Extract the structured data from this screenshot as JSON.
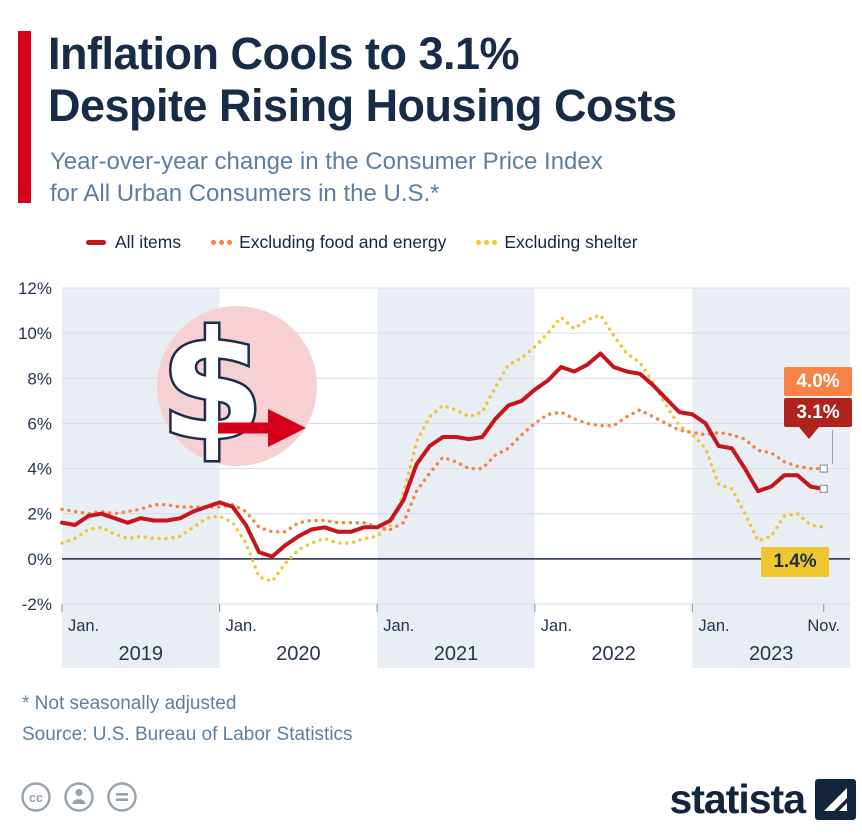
{
  "header": {
    "title_line1": "Inflation Cools to 3.1%",
    "title_line2": "Despite Rising Housing Costs",
    "subtitle_line1": "Year-over-year change in the Consumer Price Index",
    "subtitle_line2": "for All Urban Consumers in the U.S.*"
  },
  "legend": [
    {
      "label": "All items",
      "color": "#c4161c",
      "style": "solid"
    },
    {
      "label": "Excluding food and energy",
      "color": "#f58345",
      "style": "dotted"
    },
    {
      "label": "Excluding shelter",
      "color": "#eec734",
      "style": "dotted"
    }
  ],
  "theme": {
    "accent_red": "#d6001c",
    "title_navy": "#182c47",
    "subtitle_blue": "#5e7e9f",
    "band": "#e9edf4",
    "grid": "#d7dce3",
    "zero_line": "#39485e",
    "dollar_circle_pink": "#f6d0d3",
    "marker_border": "#8e99a8"
  },
  "chart_data": {
    "type": "line",
    "title": "Inflation Cools to 3.1% Despite Rising Housing Costs",
    "subtitle": "Year-over-year change in the Consumer Price Index for All Urban Consumers in the U.S. (not seasonally adjusted)",
    "x_unit": "month",
    "x_range": [
      "Jan. 2019",
      "Nov. 2023"
    ],
    "ylim": [
      -2,
      12
    ],
    "grid": true,
    "legend_position": "top",
    "dollar_symbol": "$",
    "y_ticks": [
      {
        "label": "12%",
        "value": 12
      },
      {
        "label": "10%",
        "value": 10
      },
      {
        "label": "8%",
        "value": 8
      },
      {
        "label": "6%",
        "value": 6
      },
      {
        "label": "4%",
        "value": 4
      },
      {
        "label": "2%",
        "value": 2
      },
      {
        "label": "0%",
        "value": 0,
        "emphasis": true
      },
      {
        "label": "-2%",
        "value": -2
      }
    ],
    "x_ticks": [
      {
        "label": "Jan.",
        "month": 0,
        "align": "start"
      },
      {
        "label": "Jan.",
        "month": 12,
        "align": "start"
      },
      {
        "label": "Jan.",
        "month": 24,
        "align": "start"
      },
      {
        "label": "Jan.",
        "month": 36,
        "align": "start"
      },
      {
        "label": "Jan.",
        "month": 48,
        "align": "start"
      },
      {
        "label": "Nov.",
        "month": 58,
        "align": "middle"
      }
    ],
    "x_bands": [
      {
        "label": "2019",
        "start": 0,
        "months": 12,
        "shaded": true
      },
      {
        "label": "2020",
        "start": 12,
        "months": 12,
        "shaded": false
      },
      {
        "label": "2021",
        "start": 24,
        "months": 12,
        "shaded": true
      },
      {
        "label": "2022",
        "start": 36,
        "months": 12,
        "shaded": false
      },
      {
        "label": "2023",
        "start": 48,
        "months": 12,
        "shaded": true
      }
    ],
    "series": [
      {
        "id": "ex-shelter",
        "name": "Excluding shelter",
        "color": "#eec734",
        "dash": "dotted",
        "width": 3.4,
        "end_marker": false,
        "values": [
          0.7,
          0.9,
          1.3,
          1.4,
          1.1,
          0.9,
          1.0,
          0.9,
          0.9,
          1.0,
          1.4,
          1.8,
          1.9,
          1.6,
          0.7,
          -0.8,
          -1.0,
          -0.2,
          0.4,
          0.7,
          0.9,
          0.7,
          0.7,
          0.9,
          1.0,
          1.5,
          2.9,
          5.2,
          6.3,
          6.8,
          6.6,
          6.3,
          6.5,
          7.6,
          8.6,
          8.9,
          9.4,
          10.0,
          10.7,
          10.2,
          10.6,
          10.8,
          9.9,
          9.1,
          8.7,
          7.8,
          6.8,
          5.9,
          5.5,
          4.9,
          3.3,
          3.1,
          2.0,
          0.8,
          1.0,
          1.9,
          2.0,
          1.5,
          1.4
        ]
      },
      {
        "id": "core",
        "name": "Excluding food and energy",
        "color": "#f58345",
        "dash": "dotted",
        "width": 3.4,
        "end_marker": true,
        "values": [
          2.2,
          2.1,
          2.0,
          2.1,
          2.0,
          2.1,
          2.2,
          2.4,
          2.4,
          2.3,
          2.3,
          2.3,
          2.3,
          2.4,
          2.1,
          1.4,
          1.2,
          1.2,
          1.6,
          1.7,
          1.7,
          1.6,
          1.6,
          1.6,
          1.4,
          1.3,
          1.6,
          3.0,
          3.8,
          4.5,
          4.3,
          4.0,
          4.0,
          4.6,
          4.9,
          5.5,
          6.0,
          6.4,
          6.5,
          6.2,
          6.0,
          5.9,
          5.9,
          6.3,
          6.6,
          6.3,
          6.0,
          5.7,
          5.6,
          5.5,
          5.6,
          5.5,
          5.3,
          4.8,
          4.7,
          4.3,
          4.1,
          4.0,
          4.0
        ]
      },
      {
        "id": "all-items",
        "name": "All items",
        "color": "#c4161c",
        "dash": "solid",
        "width": 4,
        "end_marker": true,
        "values": [
          1.6,
          1.5,
          1.9,
          2.0,
          1.8,
          1.6,
          1.8,
          1.7,
          1.7,
          1.8,
          2.1,
          2.3,
          2.5,
          2.3,
          1.5,
          0.3,
          0.1,
          0.6,
          1.0,
          1.3,
          1.4,
          1.2,
          1.2,
          1.4,
          1.4,
          1.7,
          2.6,
          4.2,
          5.0,
          5.4,
          5.4,
          5.3,
          5.4,
          6.2,
          6.8,
          7.0,
          7.5,
          7.9,
          8.5,
          8.3,
          8.6,
          9.1,
          8.5,
          8.3,
          8.2,
          7.7,
          7.1,
          6.5,
          6.4,
          6.0,
          5.0,
          4.9,
          4.0,
          3.0,
          3.2,
          3.7,
          3.7,
          3.2,
          3.1
        ]
      }
    ]
  },
  "callouts": [
    {
      "label": "4.0%",
      "series": "Excluding food and energy",
      "bg": "#f58345",
      "color": "#ffffff"
    },
    {
      "label": "3.1%",
      "series": "All items",
      "bg": "#b0231d",
      "color": "#ffffff"
    },
    {
      "label": "1.4%",
      "series": "Excluding shelter",
      "bg": "#eec72f",
      "color": "#1b2e4a"
    }
  ],
  "footer": {
    "footnote": "* Not seasonally adjusted",
    "source": "Source: U.S. Bureau of Labor Statistics",
    "badge_cc": "cc",
    "brand": "statista"
  }
}
